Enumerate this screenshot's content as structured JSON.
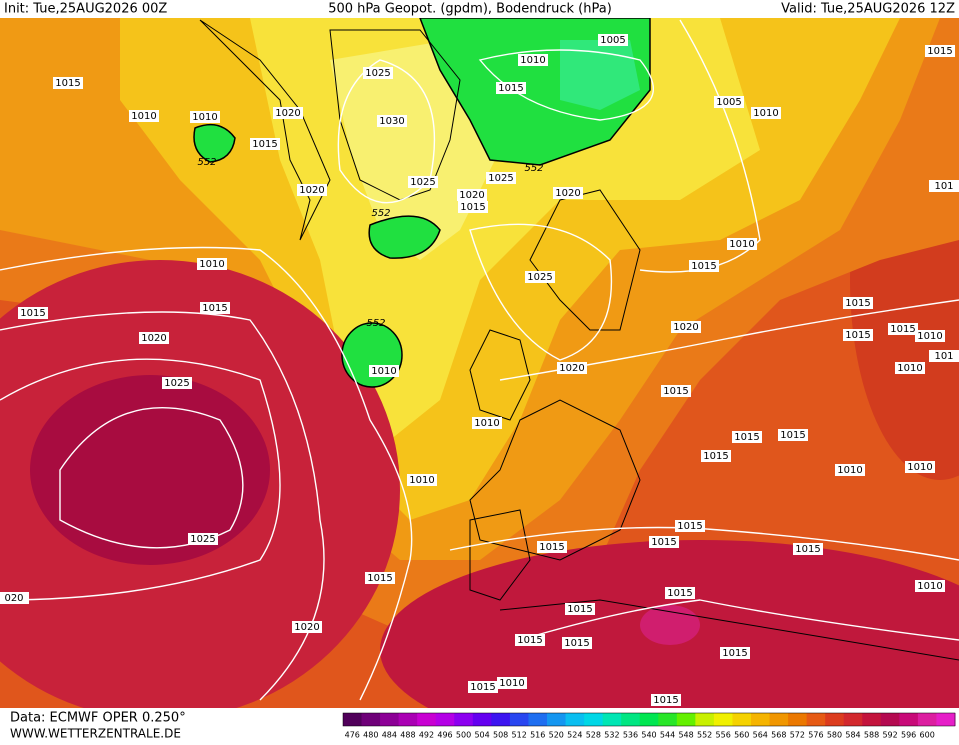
{
  "header": {
    "init": "Init: Tue,25AUG2026 00Z",
    "title": "500 hPa Geopot. (gpdm), Bodendruck (hPa)",
    "valid": "Valid: Tue,25AUG2026 12Z"
  },
  "isobar_labels": [
    "1015",
    "1010",
    "1010",
    "1015",
    "1020",
    "1025",
    "1030",
    "1020",
    "1025",
    "1020",
    "1015",
    "1025",
    "1020",
    "1010",
    "1015",
    "1005",
    "1005",
    "1010",
    "1015",
    "101",
    "1010",
    "1015",
    "1015",
    "1020",
    "1010",
    "1015",
    "1025",
    "1020",
    "1015",
    "1015",
    "1015",
    "1010",
    "101",
    "1010",
    "1020",
    "1015",
    "1025",
    "1010",
    "1010",
    "1015",
    "1015",
    "1015",
    "1010",
    "1010",
    "1010",
    "1025",
    "1015",
    "1015",
    "1015",
    "1015",
    "1015",
    "020",
    "1020",
    "1015",
    "1015",
    "1010",
    "1015",
    "1015",
    "1015",
    "1015",
    "1010",
    "1015"
  ],
  "geopotential_labels": [
    "552",
    "552",
    "552",
    "552"
  ],
  "footer": {
    "data": "Data: ECMWF OPER 0.250°",
    "site": "WWW.WETTERZENTRALE.DE"
  },
  "colorbar": {
    "labels": [
      476,
      480,
      484,
      488,
      492,
      496,
      500,
      504,
      508,
      512,
      516,
      520,
      524,
      528,
      532,
      536,
      540,
      544,
      548,
      552,
      556,
      560,
      564,
      568,
      572,
      576,
      580,
      584,
      588,
      592,
      596,
      600
    ],
    "colors": [
      "#50005a",
      "#6e0078",
      "#8c0096",
      "#aa00b4",
      "#c800d2",
      "#b400e6",
      "#8c00f0",
      "#6400f0",
      "#3c14f0",
      "#2846f0",
      "#1e6ef0",
      "#1496f0",
      "#0abef0",
      "#00d7e6",
      "#00e6b4",
      "#00e682",
      "#00e650",
      "#28e628",
      "#64f000",
      "#c8f000",
      "#f0f000",
      "#f5d200",
      "#f5b400",
      "#f09600",
      "#eb7800",
      "#e65a14",
      "#dc3c1e",
      "#d2282d",
      "#c3143c",
      "#b40a50",
      "#c80a78",
      "#dc1ea0",
      "#e61ec8"
    ]
  }
}
